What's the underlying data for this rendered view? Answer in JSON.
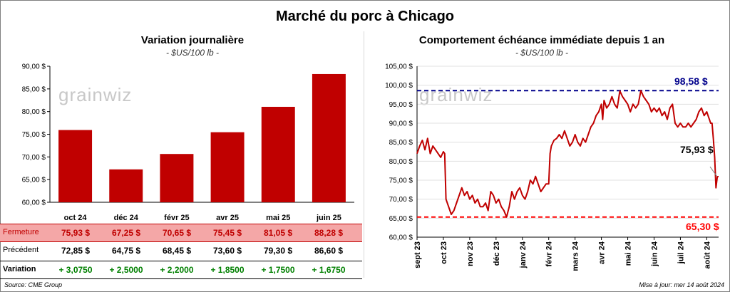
{
  "title": "Marché du porc à Chicago",
  "left_panel": {
    "title": "Variation  journalière",
    "subtitle": "- $US/100 lb -",
    "watermark": "grainwiz"
  },
  "right_panel": {
    "title": "Comportement  échéance  immédiate  depuis  1  an",
    "subtitle": "- $US/100 lb -",
    "watermark": "grainwiz",
    "high_label": "98,58 $",
    "last_label": "75,93 $",
    "low_label": "65,30 $"
  },
  "table": {
    "rows": [
      {
        "label": "Fermeture",
        "values": [
          "75,93  $",
          "67,25  $",
          "70,65  $",
          "75,45  $",
          "81,05  $",
          "88,28  $"
        ]
      },
      {
        "label": "Précédent",
        "values": [
          "72,85  $",
          "64,75  $",
          "68,45  $",
          "73,60  $",
          "79,30  $",
          "86,60  $"
        ]
      },
      {
        "label": "Variation",
        "values": [
          "+ 3,0750",
          "+ 2,5000",
          "+ 2,2000",
          "+ 1,8500",
          "+ 1,7500",
          "+ 1,6750"
        ]
      }
    ]
  },
  "footer": {
    "source": "Source: CME Group",
    "updated": "Mise à jour: mer 14 août 2024"
  },
  "colors": {
    "bar": "#c00000",
    "line": "#c00000",
    "high_line": "#00008b",
    "low_line": "#ff0000",
    "fermeture_bg": "#f4a7a7",
    "variation_text": "#008000"
  },
  "chart_data": [
    {
      "type": "bar",
      "title": "Variation  journalière",
      "subtitle": "- $US/100 lb -",
      "categories": [
        "oct 24",
        "déc 24",
        "févr 25",
        "avr 25",
        "mai 25",
        "juin 25"
      ],
      "values": [
        75.93,
        67.25,
        70.65,
        75.45,
        81.05,
        88.28
      ],
      "ylim": [
        60,
        90
      ],
      "yticks": [
        60,
        65,
        70,
        75,
        80,
        85,
        90
      ],
      "ytick_labels": [
        "60,00 $",
        "65,00 $",
        "70,00 $",
        "75,00 $",
        "80,00 $",
        "85,00 $",
        "90,00 $"
      ]
    },
    {
      "type": "line",
      "title": "Comportement  échéance  immédiate  depuis  1  an",
      "subtitle": "- $US/100 lb -",
      "ylim": [
        60,
        105
      ],
      "yticks": [
        60,
        65,
        70,
        75,
        80,
        85,
        90,
        95,
        100,
        105
      ],
      "ytick_labels": [
        "60,00 $",
        "65,00 $",
        "70,00 $",
        "75,00 $",
        "80,00 $",
        "85,00 $",
        "90,00 $",
        "95,00 $",
        "100,00 $",
        "105,00 $"
      ],
      "xtick_labels": [
        "sept 23",
        "oct 23",
        "nov 23",
        "déc 23",
        "janv 24",
        "févr 24",
        "mars 24",
        "avr 24",
        "mai 24",
        "juin 24",
        "juil 24",
        "août 24"
      ],
      "xlim": [
        0,
        11.45
      ],
      "high": 98.58,
      "low": 65.3,
      "last": 75.93,
      "series": [
        {
          "name": "Échéance immédiate",
          "x": [
            0,
            0.1,
            0.2,
            0.3,
            0.4,
            0.5,
            0.6,
            0.7,
            0.8,
            0.9,
            1.0,
            1.05,
            1.1,
            1.2,
            1.3,
            1.4,
            1.5,
            1.6,
            1.7,
            1.8,
            1.9,
            2.0,
            2.1,
            2.2,
            2.3,
            2.4,
            2.5,
            2.6,
            2.7,
            2.8,
            2.9,
            3.0,
            3.1,
            3.2,
            3.3,
            3.4,
            3.5,
            3.6,
            3.7,
            3.8,
            3.9,
            4.0,
            4.1,
            4.2,
            4.3,
            4.4,
            4.5,
            4.6,
            4.7,
            4.8,
            4.9,
            5.0,
            5.05,
            5.1,
            5.2,
            5.3,
            5.4,
            5.5,
            5.6,
            5.7,
            5.8,
            5.9,
            6.0,
            6.1,
            6.2,
            6.3,
            6.4,
            6.5,
            6.6,
            6.7,
            6.8,
            6.9,
            7.0,
            7.05,
            7.1,
            7.2,
            7.3,
            7.4,
            7.5,
            7.6,
            7.7,
            7.8,
            7.9,
            8.0,
            8.1,
            8.2,
            8.3,
            8.4,
            8.5,
            8.6,
            8.7,
            8.8,
            8.9,
            9.0,
            9.1,
            9.2,
            9.3,
            9.4,
            9.5,
            9.6,
            9.7,
            9.8,
            9.9,
            10.0,
            10.1,
            10.2,
            10.3,
            10.4,
            10.5,
            10.6,
            10.7,
            10.8,
            10.9,
            11.0,
            11.05,
            11.1,
            11.15,
            11.2,
            11.25,
            11.3,
            11.35,
            11.4,
            11.45
          ],
          "values": [
            82,
            84,
            85.5,
            83,
            86,
            82,
            84,
            83,
            82,
            81,
            82.5,
            82,
            70,
            68,
            66,
            67,
            69,
            71,
            73,
            71,
            72,
            70,
            71,
            69,
            70,
            68,
            68,
            69,
            67,
            72,
            71,
            69,
            70,
            68,
            67,
            65.3,
            68,
            72,
            70,
            72,
            73,
            71,
            70,
            72,
            75,
            74,
            76,
            74,
            72,
            73,
            74,
            74,
            82,
            84,
            85.5,
            86,
            87,
            86,
            88,
            86,
            84,
            85,
            87,
            85,
            84,
            86,
            85,
            87,
            89,
            90,
            92,
            93,
            95,
            91,
            96,
            94,
            95,
            97,
            95,
            94,
            98.5,
            97,
            96,
            95,
            93,
            95,
            94,
            95,
            98.58,
            97,
            96,
            95,
            93,
            94,
            93,
            94,
            92,
            93,
            91,
            94,
            95,
            90,
            89,
            90,
            89,
            89,
            90,
            89,
            90,
            91,
            93,
            94,
            92,
            93,
            92,
            91,
            90,
            90,
            86,
            81,
            73,
            75.93,
            75.93
          ]
        }
      ]
    }
  ]
}
